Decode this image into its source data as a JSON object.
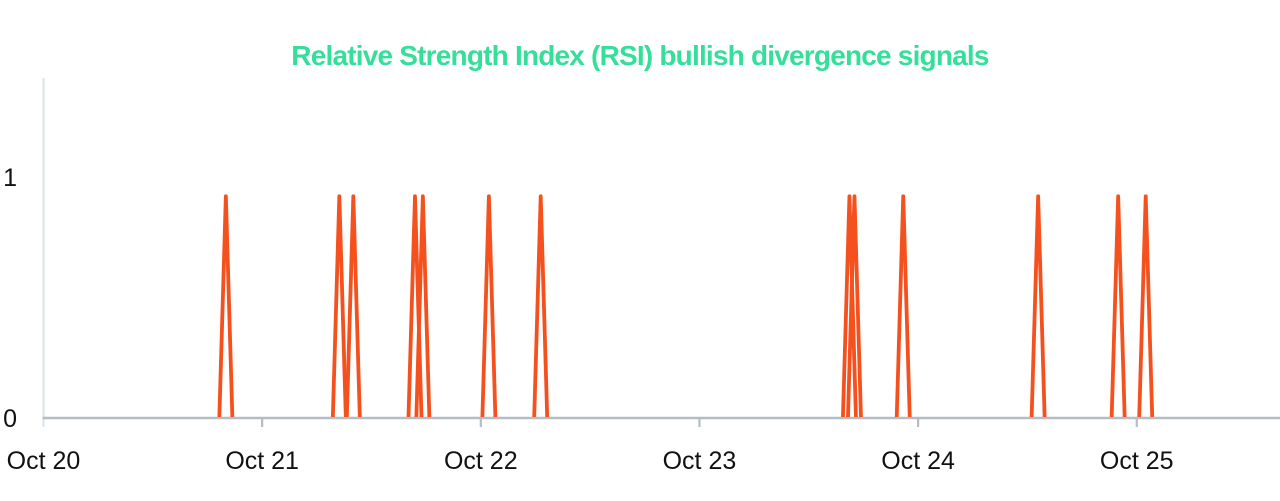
{
  "chart_data": {
    "type": "line",
    "title": "Relative Strength Index (RSI) bullish divergence signals",
    "legend": "none",
    "grid": false,
    "x_axis": {
      "tick_labels": [
        "Oct 20",
        "Oct 21",
        "Oct 22",
        "Oct 23",
        "Oct 24",
        "Oct 25"
      ],
      "tick_values_days": [
        0,
        1,
        2,
        3,
        4,
        5
      ],
      "xlim_days": [
        0,
        5.66
      ]
    },
    "y_axis": {
      "tick_labels": [
        "0",
        "1"
      ],
      "tick_values": [
        0,
        1
      ],
      "ylim": [
        0,
        1.41
      ]
    },
    "series": [
      {
        "name": "RSI bullish divergence signal",
        "color": "#F4511E",
        "baseline_value": 0,
        "peak_value": 0.92,
        "spikes": [
          {
            "t_days": 0.834,
            "time": "Oct 20 20:00",
            "value": 0.92
          },
          {
            "t_days": 1.353,
            "time": "Oct 21 08:28",
            "value": 0.92
          },
          {
            "t_days": 1.417,
            "time": "Oct 21 10:00",
            "value": 0.92
          },
          {
            "t_days": 1.699,
            "time": "Oct 21 16:46",
            "value": 0.92
          },
          {
            "t_days": 1.735,
            "time": "Oct 21 17:38",
            "value": 0.92
          },
          {
            "t_days": 2.037,
            "time": "Oct 22 00:53",
            "value": 0.92
          },
          {
            "t_days": 2.274,
            "time": "Oct 22 06:35",
            "value": 0.92
          },
          {
            "t_days": 3.686,
            "time": "Oct 23 16:28",
            "value": 0.92
          },
          {
            "t_days": 3.709,
            "time": "Oct 23 17:01",
            "value": 0.92
          },
          {
            "t_days": 3.932,
            "time": "Oct 23 22:22",
            "value": 0.92
          },
          {
            "t_days": 4.549,
            "time": "Oct 24 13:11",
            "value": 0.92
          },
          {
            "t_days": 4.915,
            "time": "Oct 24 21:58",
            "value": 0.92
          },
          {
            "t_days": 5.041,
            "time": "Oct 25 01:00",
            "value": 0.92
          }
        ]
      }
    ],
    "colors": {
      "title": "#35DF9A",
      "series_line": "#F4511E",
      "x_axis_line": "#b2bec3",
      "y_axis_line": "#dde3e5",
      "tick_text": "#111111",
      "background": "#ffffff"
    }
  }
}
